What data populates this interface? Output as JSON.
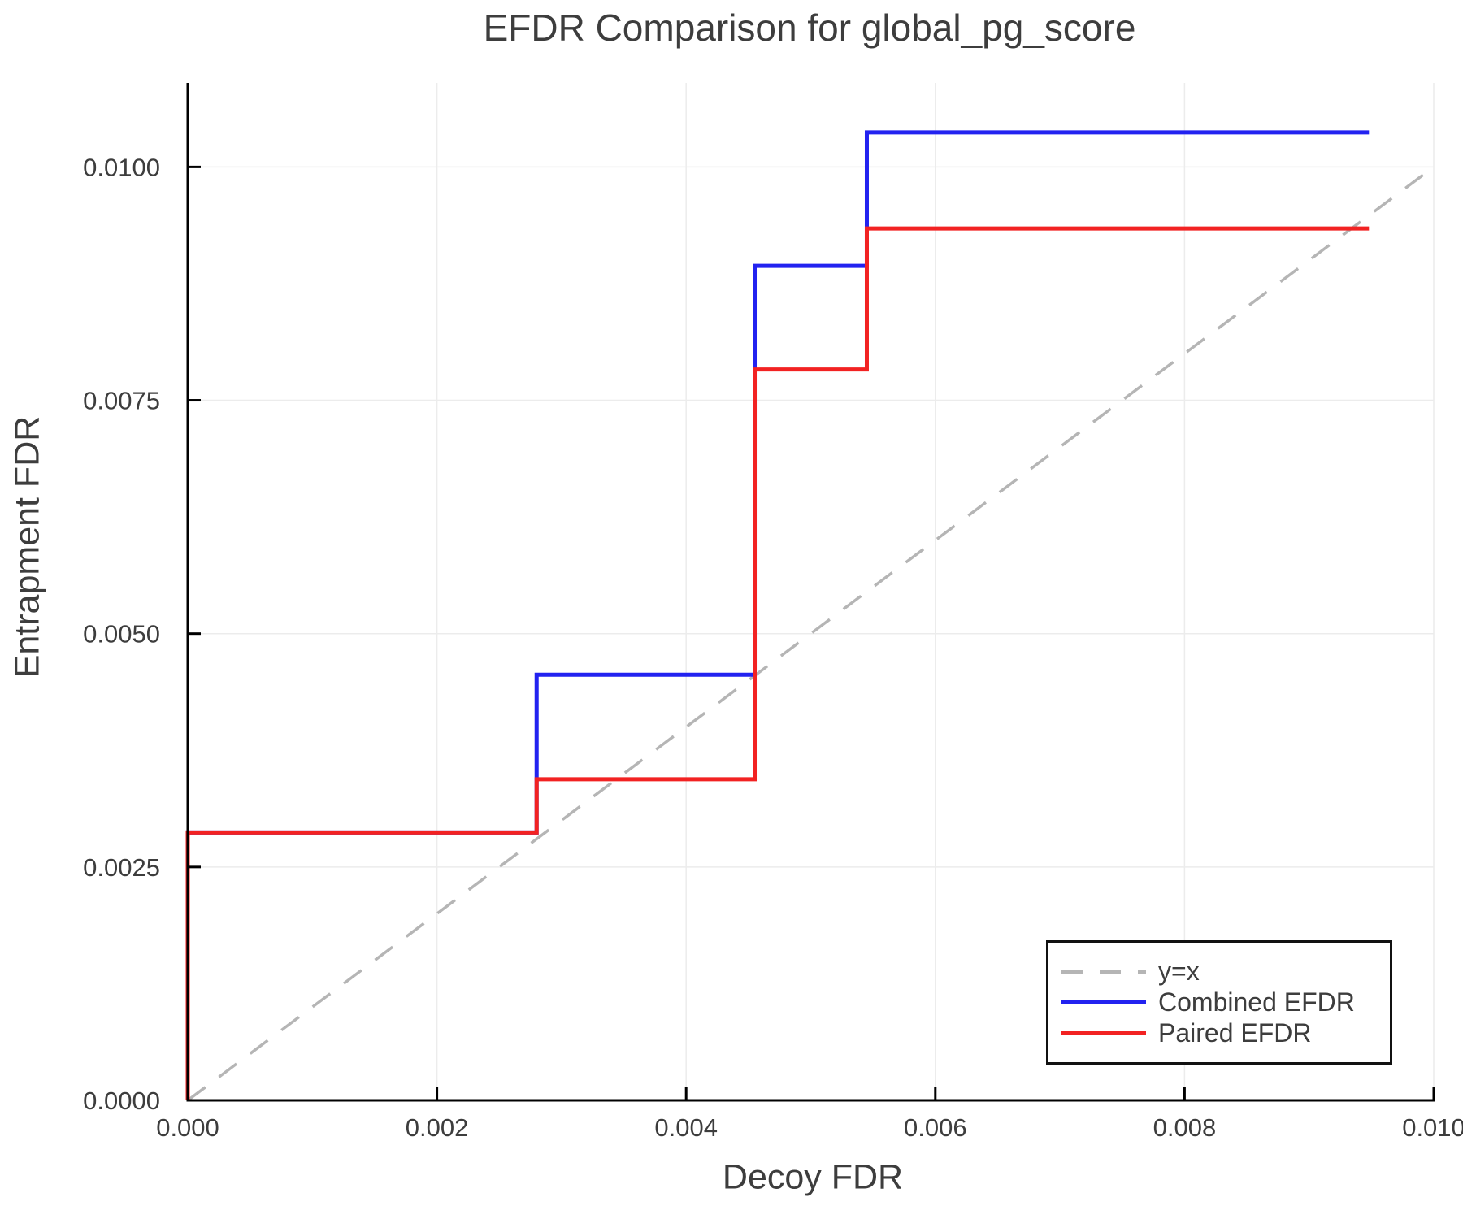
{
  "chart_data": {
    "type": "line",
    "subtype": "step-function-comparison",
    "title": "EFDR Comparison for global_pg_score",
    "xlabel": "Decoy FDR",
    "ylabel": "Entrapment FDR",
    "xlim": [
      0.0,
      0.01
    ],
    "ylim": [
      0.0,
      0.0109
    ],
    "grid": true,
    "x_ticks": {
      "values": [
        0.0,
        0.002,
        0.004,
        0.006,
        0.008,
        0.01
      ],
      "labels": [
        "0.000",
        "0.002",
        "0.004",
        "0.006",
        "0.008",
        "0.010"
      ]
    },
    "y_ticks": {
      "values": [
        0.0,
        0.0025,
        0.005,
        0.0075,
        0.01
      ],
      "labels": [
        "0.0000",
        "0.0025",
        "0.0050",
        "0.0075",
        "0.0100"
      ]
    },
    "reference_line": {
      "name": "y=x",
      "style": "dashed",
      "color": "#b5b5b5",
      "from": [
        0.0,
        0.0
      ],
      "to": [
        0.01,
        0.01
      ]
    },
    "series": [
      {
        "name": "Combined EFDR",
        "color": "#2222f0",
        "style": "solid",
        "step_points": [
          [
            0.0,
            0.0
          ],
          [
            0.0,
            0.00287
          ],
          [
            0.0028,
            0.00287
          ],
          [
            0.0028,
            0.00456
          ],
          [
            0.00455,
            0.00456
          ],
          [
            0.00455,
            0.00894
          ],
          [
            0.00545,
            0.00894
          ],
          [
            0.00545,
            0.01037
          ],
          [
            0.00948,
            0.01037
          ]
        ]
      },
      {
        "name": "Paired EFDR",
        "color": "#f22222",
        "style": "solid",
        "step_points": [
          [
            0.0,
            0.0
          ],
          [
            0.0,
            0.00287
          ],
          [
            0.0028,
            0.00287
          ],
          [
            0.0028,
            0.00344
          ],
          [
            0.00455,
            0.00344
          ],
          [
            0.00455,
            0.00783
          ],
          [
            0.00545,
            0.00783
          ],
          [
            0.00545,
            0.00934
          ],
          [
            0.00948,
            0.00934
          ]
        ]
      }
    ],
    "legend": {
      "position": "bottom-right",
      "entries": [
        {
          "label": "y=x",
          "color": "#b5b5b5",
          "style": "dashed"
        },
        {
          "label": "Combined EFDR",
          "color": "#2222f0",
          "style": "solid"
        },
        {
          "label": "Paired EFDR",
          "color": "#f22222",
          "style": "solid"
        }
      ]
    },
    "colors": {
      "grid": "#ececec",
      "spine": "#000000",
      "tick": "#000000",
      "text": "#3d3d3d",
      "background": "#ffffff"
    }
  }
}
